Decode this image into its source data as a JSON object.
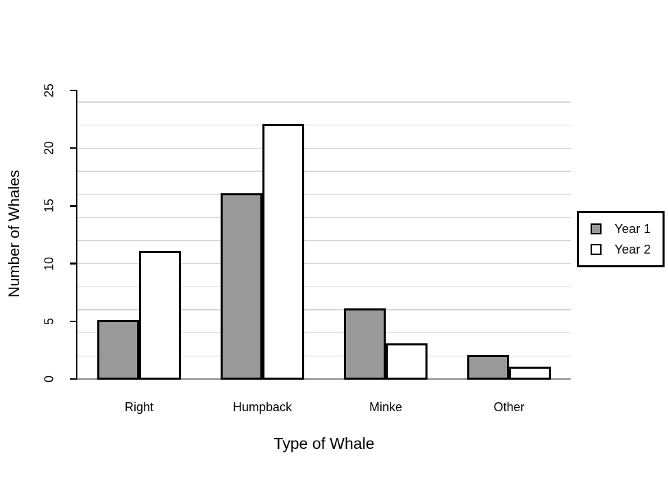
{
  "chart_data": {
    "type": "bar",
    "title": "",
    "categories": [
      "Right",
      "Humpback",
      "Minke",
      "Other"
    ],
    "series": [
      {
        "name": "Year 1",
        "values": [
          5,
          16,
          6,
          2
        ],
        "fill": "#999999"
      },
      {
        "name": "Year 2",
        "values": [
          11,
          22,
          3,
          1
        ],
        "fill": "#ffffff"
      }
    ],
    "xlabel": "Type of Whale",
    "ylabel": "Number of Whales",
    "ylim": [
      0,
      25
    ],
    "yticks": [
      "0",
      "5",
      "10",
      "15",
      "20",
      "25"
    ],
    "gridline_step": 2,
    "grid": true,
    "legend": {
      "position": "right",
      "entries": [
        "Year 1",
        "Year 2"
      ]
    },
    "colors": {
      "bar_year1": "#999999",
      "bar_year2": "#ffffff",
      "bar_outline": "#000000",
      "gridline": "#d6d6d6",
      "baseline": "#8a8a8a",
      "axis": "#000000",
      "text": "#000000",
      "background": "#ffffff"
    }
  }
}
